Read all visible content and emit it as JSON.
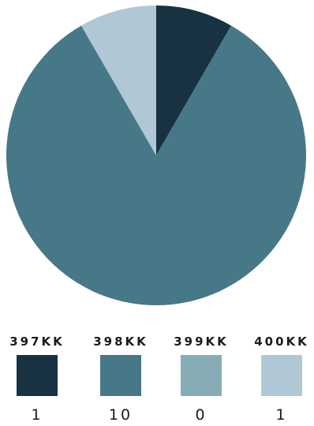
{
  "chart_data": {
    "type": "pie",
    "categories": [
      "397KK",
      "398KK",
      "399KK",
      "400KK"
    ],
    "values": [
      1,
      10,
      0,
      1
    ],
    "colors": [
      "#183241",
      "#467888",
      "#86adb6",
      "#b0c7d5"
    ],
    "legend_position": "bottom"
  },
  "legend": {
    "items": [
      {
        "label": "397KK",
        "value": "1",
        "color": "#183241"
      },
      {
        "label": "398KK",
        "value": "10",
        "color": "#467888"
      },
      {
        "label": "399KK",
        "value": "0",
        "color": "#86adb6"
      },
      {
        "label": "400KK",
        "value": "1",
        "color": "#b0c7d5"
      }
    ]
  }
}
